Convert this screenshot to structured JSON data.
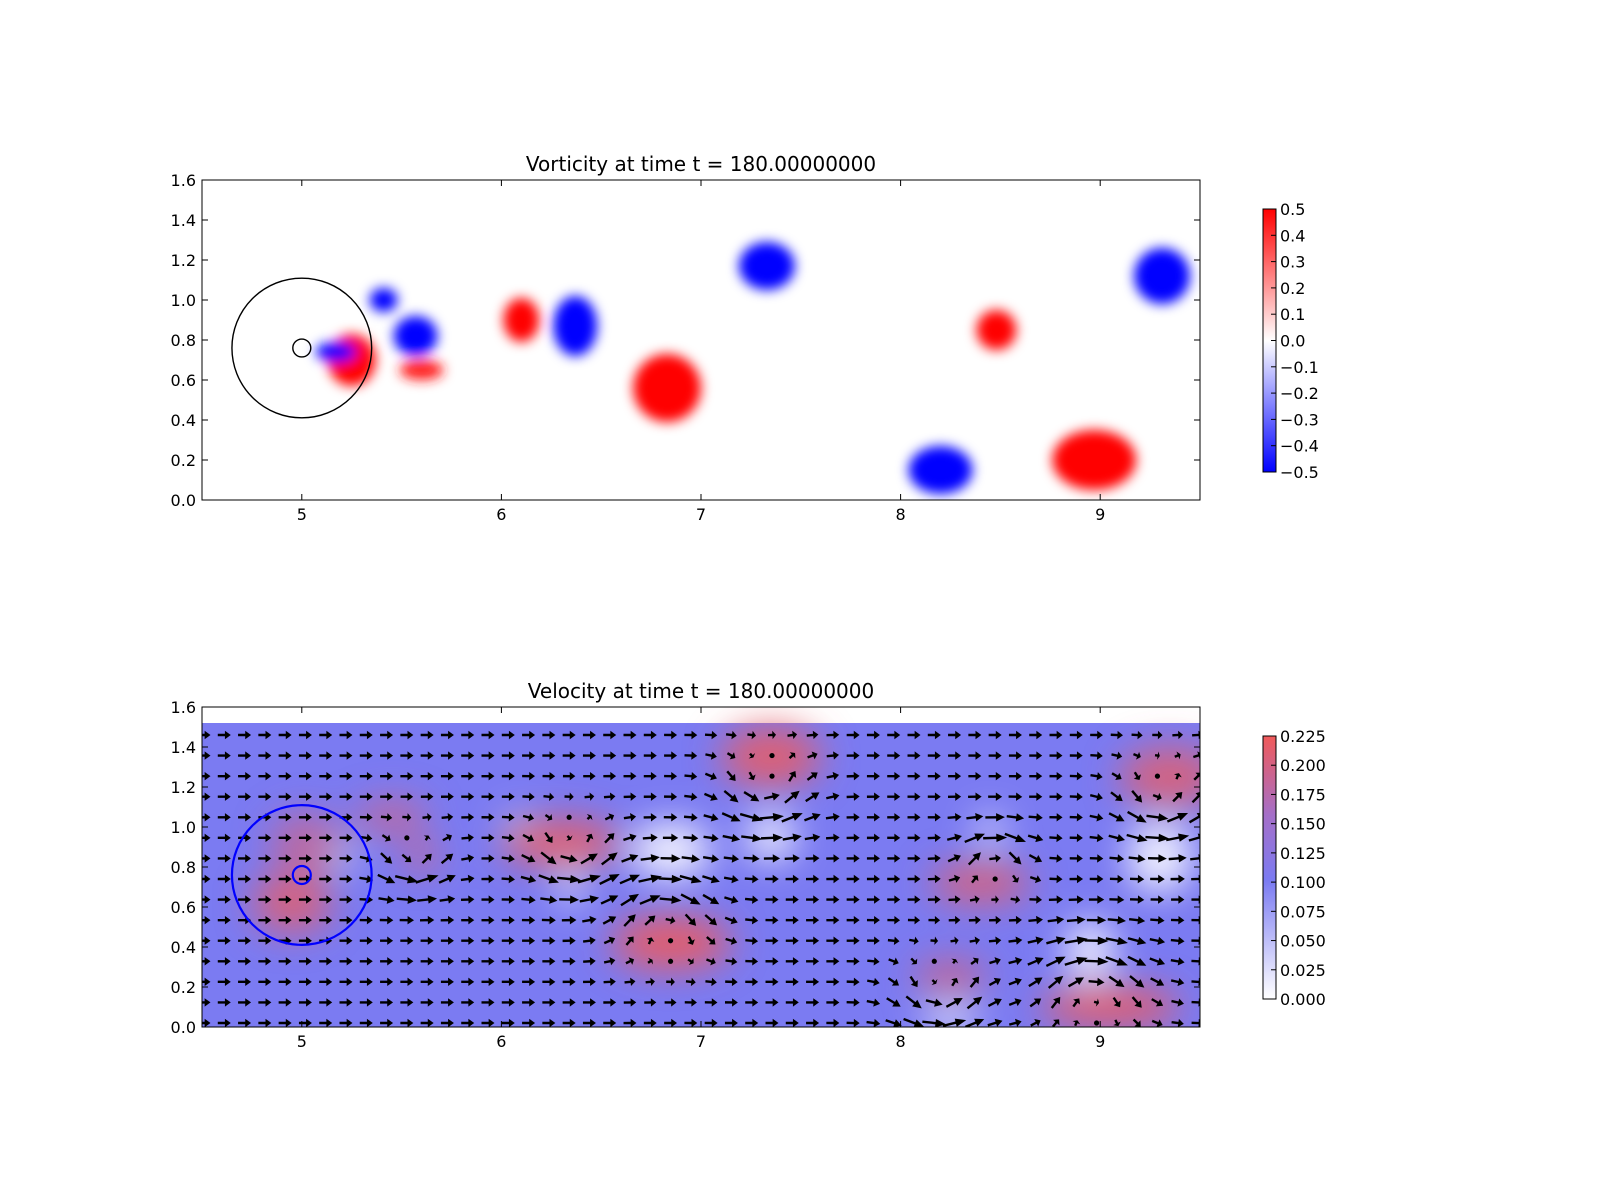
{
  "chart_data": [
    {
      "type": "heatmap",
      "quantity": "vorticity",
      "title": "Vorticity at time t =   180.00000000",
      "xlim": [
        4.5,
        9.5
      ],
      "ylim": [
        0.0,
        1.6
      ],
      "x_ticks": [
        "5",
        "6",
        "7",
        "8",
        "9"
      ],
      "y_ticks": [
        "0.0",
        "0.2",
        "0.4",
        "0.6",
        "0.8",
        "1.0",
        "1.2",
        "1.4",
        "1.6"
      ],
      "grid": false,
      "colormap": "bwr",
      "colors": {
        "low": "#0000ff",
        "mid": "#ffffff",
        "high": "#ff0000"
      },
      "colorbar": {
        "range": [
          -0.5,
          0.5
        ],
        "ticks": [
          "0.5",
          "0.4",
          "0.3",
          "0.2",
          "0.1",
          "0.0",
          "−0.1",
          "−0.2",
          "−0.3",
          "−0.4",
          "−0.5"
        ]
      },
      "cylinder": {
        "center": [
          5.0,
          0.76
        ],
        "radius": 0.045
      },
      "outer_circle": {
        "center": [
          5.0,
          0.76
        ],
        "radius": 0.35,
        "color": "#000000"
      },
      "vortices": [
        {
          "x": 5.25,
          "y": 0.7,
          "rx": 0.12,
          "ry": 0.13,
          "strength": 0.5
        },
        {
          "x": 5.6,
          "y": 0.65,
          "rx": 0.11,
          "ry": 0.05,
          "strength": 0.45
        },
        {
          "x": 5.57,
          "y": 0.82,
          "rx": 0.11,
          "ry": 0.1,
          "strength": -0.5
        },
        {
          "x": 5.41,
          "y": 1.0,
          "rx": 0.07,
          "ry": 0.06,
          "strength": -0.5
        },
        {
          "x": 5.17,
          "y": 0.74,
          "rx": 0.1,
          "ry": 0.05,
          "strength": -0.5
        },
        {
          "x": 6.1,
          "y": 0.9,
          "rx": 0.09,
          "ry": 0.11,
          "strength": 0.5
        },
        {
          "x": 6.37,
          "y": 0.87,
          "rx": 0.11,
          "ry": 0.15,
          "strength": -0.5
        },
        {
          "x": 6.83,
          "y": 0.56,
          "rx": 0.17,
          "ry": 0.17,
          "strength": 0.5
        },
        {
          "x": 7.33,
          "y": 1.17,
          "rx": 0.14,
          "ry": 0.12,
          "strength": -0.5
        },
        {
          "x": 8.48,
          "y": 0.85,
          "rx": 0.1,
          "ry": 0.1,
          "strength": 0.5
        },
        {
          "x": 8.2,
          "y": 0.15,
          "rx": 0.16,
          "ry": 0.12,
          "strength": -0.5
        },
        {
          "x": 8.97,
          "y": 0.2,
          "rx": 0.21,
          "ry": 0.15,
          "strength": 0.5
        },
        {
          "x": 9.31,
          "y": 1.12,
          "rx": 0.14,
          "ry": 0.14,
          "strength": -0.5
        }
      ]
    },
    {
      "type": "heatmap",
      "quantity": "velocity magnitude with quiver arrows",
      "title": "Velocity at time t =   180.00000000",
      "xlim": [
        4.5,
        9.5
      ],
      "ylim": [
        0.0,
        1.6
      ],
      "x_ticks": [
        "5",
        "6",
        "7",
        "8",
        "9"
      ],
      "y_ticks": [
        "0.0",
        "0.2",
        "0.4",
        "0.6",
        "0.8",
        "1.0",
        "1.2",
        "1.4",
        "1.6"
      ],
      "grid": false,
      "field_extent": {
        "x": [
          4.5,
          9.5
        ],
        "y": [
          0.0,
          1.52
        ]
      },
      "colormap": "white-blue-red",
      "colors": {
        "low": "#ffffff",
        "mid": "#7b7bf2",
        "high": "#f05a5a",
        "arrows": "#000000"
      },
      "base_speed": 0.1,
      "colorbar": {
        "range": [
          0.0,
          0.225
        ],
        "ticks": [
          "0.225",
          "0.200",
          "0.175",
          "0.150",
          "0.125",
          "0.100",
          "0.075",
          "0.050",
          "0.025",
          "0.000"
        ]
      },
      "cylinder": {
        "center": [
          5.0,
          0.76
        ],
        "radius": 0.045,
        "color": "#0000ff"
      },
      "outer_circle": {
        "center": [
          5.0,
          0.76
        ],
        "radius": 0.35,
        "color": "#0000ff"
      },
      "fast_regions": [
        {
          "x": 4.95,
          "y": 0.62,
          "rx": 0.2,
          "ry": 0.15,
          "speed": 0.2
        },
        {
          "x": 5.02,
          "y": 0.92,
          "rx": 0.18,
          "ry": 0.15,
          "speed": 0.17
        },
        {
          "x": 5.45,
          "y": 1.05,
          "rx": 0.18,
          "ry": 0.08,
          "speed": 0.18
        },
        {
          "x": 5.6,
          "y": 0.85,
          "rx": 0.08,
          "ry": 0.07,
          "speed": 0.2
        },
        {
          "x": 6.3,
          "y": 0.92,
          "rx": 0.3,
          "ry": 0.12,
          "speed": 0.21
        },
        {
          "x": 6.85,
          "y": 0.42,
          "rx": 0.3,
          "ry": 0.13,
          "speed": 0.22
        },
        {
          "x": 7.35,
          "y": 1.35,
          "rx": 0.25,
          "ry": 0.15,
          "speed": 0.21
        },
        {
          "x": 8.4,
          "y": 0.72,
          "rx": 0.25,
          "ry": 0.1,
          "speed": 0.2
        },
        {
          "x": 8.25,
          "y": 0.25,
          "rx": 0.18,
          "ry": 0.08,
          "speed": 0.19
        },
        {
          "x": 9.05,
          "y": 0.1,
          "rx": 0.35,
          "ry": 0.1,
          "speed": 0.22
        },
        {
          "x": 9.35,
          "y": 1.25,
          "rx": 0.25,
          "ry": 0.15,
          "speed": 0.2
        }
      ],
      "slow_regions": [
        {
          "x": 6.85,
          "y": 0.88,
          "rx": 0.2,
          "ry": 0.14
        },
        {
          "x": 7.35,
          "y": 0.95,
          "rx": 0.12,
          "ry": 0.12
        },
        {
          "x": 8.45,
          "y": 0.98,
          "rx": 0.06,
          "ry": 0.08
        },
        {
          "x": 9.3,
          "y": 0.85,
          "rx": 0.16,
          "ry": 0.18
        },
        {
          "x": 8.95,
          "y": 0.38,
          "rx": 0.12,
          "ry": 0.15
        },
        {
          "x": 8.25,
          "y": 0.03,
          "rx": 0.14,
          "ry": 0.06
        },
        {
          "x": 5.2,
          "y": 0.85,
          "rx": 0.06,
          "ry": 0.06
        },
        {
          "x": 6.35,
          "y": 0.7,
          "rx": 0.05,
          "ry": 0.1
        },
        {
          "x": 6.08,
          "y": 1.0,
          "rx": 0.05,
          "ry": 0.06
        }
      ],
      "swirls": [
        {
          "x": 6.37,
          "y": 0.87,
          "r": 0.18,
          "dir": 1
        },
        {
          "x": 6.83,
          "y": 0.56,
          "r": 0.22,
          "dir": -1
        },
        {
          "x": 7.33,
          "y": 1.17,
          "r": 0.2,
          "dir": 1
        },
        {
          "x": 8.48,
          "y": 0.85,
          "r": 0.15,
          "dir": -1
        },
        {
          "x": 8.2,
          "y": 0.15,
          "r": 0.2,
          "dir": 1
        },
        {
          "x": 8.97,
          "y": 0.2,
          "r": 0.25,
          "dir": -1
        },
        {
          "x": 9.31,
          "y": 1.12,
          "r": 0.2,
          "dir": 1
        },
        {
          "x": 5.57,
          "y": 0.82,
          "r": 0.15,
          "dir": 1
        }
      ]
    }
  ]
}
